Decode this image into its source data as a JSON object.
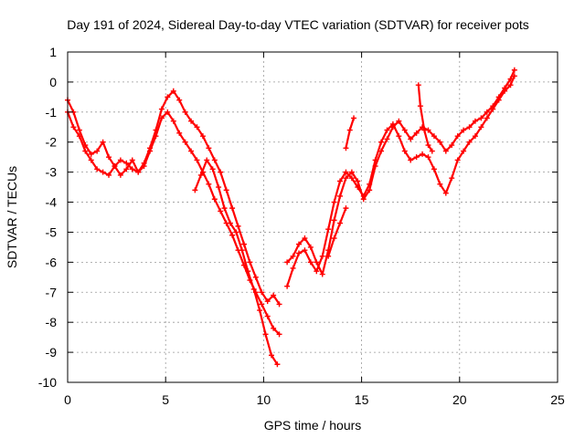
{
  "chart_data": {
    "type": "scatter",
    "title": "Day 191 of 2024, Sidereal Day-to-day VTEC variation (SDTVAR) for receiver pots",
    "xlabel": "GPS time / hours",
    "ylabel": "SDTVAR / TECUs",
    "xlim": [
      0,
      25
    ],
    "ylim": [
      -10,
      1
    ],
    "xticks": [
      0,
      5,
      10,
      15,
      20,
      25
    ],
    "yticks": [
      1,
      0,
      -1,
      -2,
      -3,
      -4,
      -5,
      -6,
      -7,
      -8,
      -9,
      -10
    ],
    "grid": true,
    "marker": "+",
    "color": "#ff0000",
    "series": [
      {
        "x": [
          0.0,
          0.3,
          0.6,
          0.9,
          1.2,
          1.5,
          1.8,
          2.1,
          2.4,
          2.7,
          3.0,
          3.3,
          3.6,
          3.9,
          4.2,
          4.5,
          4.8,
          5.1,
          5.4,
          5.7,
          6.0,
          6.3,
          6.6,
          6.9,
          7.2,
          7.5,
          7.8,
          8.1,
          8.4,
          8.7,
          9.0,
          9.3,
          9.6,
          9.9,
          10.2,
          10.5,
          10.8
        ],
        "y": [
          -0.6,
          -1.0,
          -1.6,
          -2.1,
          -2.4,
          -2.3,
          -2.0,
          -2.5,
          -2.8,
          -3.1,
          -2.9,
          -2.6,
          -3.0,
          -2.7,
          -2.2,
          -1.6,
          -0.9,
          -0.5,
          -0.3,
          -0.6,
          -1.0,
          -1.3,
          -1.5,
          -1.8,
          -2.2,
          -2.6,
          -3.0,
          -3.6,
          -4.2,
          -4.8,
          -5.4,
          -6.0,
          -6.5,
          -7.0,
          -7.3,
          -7.1,
          -7.4
        ]
      },
      {
        "x": [
          0.0,
          0.3,
          0.6,
          0.9,
          1.2,
          1.5,
          1.8,
          2.1,
          2.4,
          2.7,
          3.0,
          3.3,
          3.6,
          3.9,
          4.2,
          4.5,
          4.8,
          5.1,
          5.4,
          5.7,
          6.0,
          6.3,
          6.6,
          6.9,
          7.2,
          7.5,
          7.8,
          8.1,
          8.4,
          8.7,
          9.0,
          9.3,
          9.6,
          9.9,
          10.2,
          10.5,
          10.8
        ],
        "y": [
          -1.0,
          -1.5,
          -1.8,
          -2.3,
          -2.6,
          -2.9,
          -3.0,
          -3.1,
          -2.8,
          -2.6,
          -2.7,
          -2.9,
          -3.0,
          -2.8,
          -2.3,
          -1.8,
          -1.2,
          -1.0,
          -1.3,
          -1.7,
          -2.0,
          -2.3,
          -2.6,
          -3.0,
          -3.4,
          -3.9,
          -4.3,
          -4.7,
          -5.1,
          -5.6,
          -6.1,
          -6.6,
          -7.0,
          -7.4,
          -7.8,
          -8.2,
          -8.4
        ]
      },
      {
        "x": [
          6.5,
          6.8,
          7.1,
          7.4,
          7.7,
          8.0,
          8.3,
          8.6,
          8.9,
          9.2,
          9.5,
          9.8,
          10.1,
          10.4,
          10.7
        ],
        "y": [
          -3.6,
          -3.1,
          -2.6,
          -2.9,
          -3.5,
          -4.2,
          -4.7,
          -5.0,
          -5.6,
          -6.3,
          -6.9,
          -7.6,
          -8.4,
          -9.1,
          -9.4
        ]
      },
      {
        "x": [
          11.2,
          11.5,
          11.8,
          12.1,
          12.4,
          12.7,
          13.0,
          13.3,
          13.6,
          13.9,
          14.2,
          14.5,
          14.8,
          15.1,
          15.4,
          15.7,
          16.0,
          16.3,
          16.6,
          16.9,
          17.2,
          17.5,
          17.8,
          18.1,
          18.4,
          18.7,
          19.0,
          19.3,
          19.6,
          19.9,
          20.2,
          20.5,
          20.8,
          21.1,
          21.4,
          21.7,
          22.0,
          22.3,
          22.6,
          22.8
        ],
        "y": [
          -6.8,
          -6.2,
          -5.7,
          -5.6,
          -6.0,
          -6.3,
          -5.8,
          -4.9,
          -4.0,
          -3.3,
          -3.0,
          -3.2,
          -3.5,
          -3.8,
          -3.4,
          -2.6,
          -2.0,
          -1.6,
          -1.4,
          -1.8,
          -2.3,
          -2.6,
          -2.5,
          -2.4,
          -2.5,
          -2.9,
          -3.4,
          -3.7,
          -3.2,
          -2.6,
          -2.3,
          -2.0,
          -1.8,
          -1.5,
          -1.2,
          -0.9,
          -0.6,
          -0.3,
          -0.1,
          0.2
        ]
      },
      {
        "x": [
          11.2,
          11.5,
          11.8,
          12.1,
          12.4,
          12.7,
          13.0,
          13.3,
          13.6,
          13.9,
          14.2,
          14.5,
          14.8,
          15.1,
          15.4,
          15.7,
          16.0,
          16.3,
          16.6,
          16.9,
          17.2,
          17.5,
          17.8,
          18.1,
          18.4,
          18.7,
          19.0,
          19.3,
          19.6,
          19.9,
          20.2,
          20.5,
          20.8,
          21.1,
          21.4,
          21.7,
          22.0,
          22.3,
          22.6,
          22.8
        ],
        "y": [
          -6.0,
          -5.8,
          -5.4,
          -5.2,
          -5.5,
          -6.0,
          -6.4,
          -5.6,
          -4.6,
          -3.8,
          -3.2,
          -3.0,
          -3.3,
          -3.9,
          -3.6,
          -2.8,
          -2.3,
          -1.9,
          -1.5,
          -1.3,
          -1.6,
          -1.9,
          -1.7,
          -1.5,
          -1.6,
          -1.8,
          -2.0,
          -2.3,
          -2.1,
          -1.8,
          -1.6,
          -1.5,
          -1.3,
          -1.2,
          -1.0,
          -0.8,
          -0.5,
          -0.2,
          0.1,
          0.4
        ]
      },
      {
        "x": [
          17.9,
          18.0,
          18.2,
          18.4,
          18.6
        ],
        "y": [
          -0.1,
          -0.8,
          -1.6,
          -2.1,
          -2.3
        ]
      },
      {
        "x": [
          13.3,
          13.6,
          13.9,
          14.2
        ],
        "y": [
          -5.8,
          -5.2,
          -4.7,
          -4.2
        ]
      },
      {
        "x": [
          14.2,
          14.4,
          14.6
        ],
        "y": [
          -2.2,
          -1.6,
          -1.2
        ]
      }
    ]
  }
}
